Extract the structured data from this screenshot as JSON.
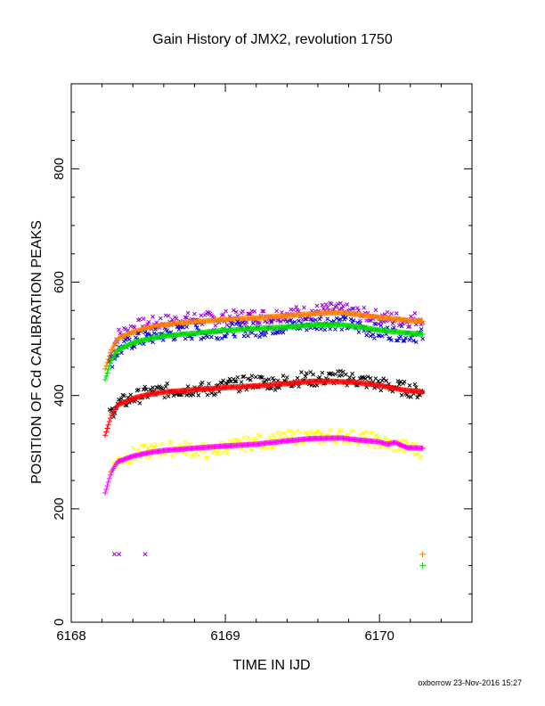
{
  "chart_data": {
    "type": "scatter",
    "title": "Gain History of JMX2, revolution 1750",
    "xlabel": "TIME IN IJD",
    "ylabel": "POSITION OF Cd CALIBRATION PEAKS",
    "xlim": [
      6168.0,
      6170.6
    ],
    "ylim": [
      0,
      950
    ],
    "xticks": [
      "6168",
      "6169",
      "6170"
    ],
    "yticks": [
      "0",
      "200",
      "400",
      "600",
      "800"
    ],
    "grid": false,
    "series": [
      {
        "color": "#9900cc",
        "marker": "x",
        "role": "scatter",
        "points": [
          [
            6168.25,
            465
          ],
          [
            6168.3,
            505
          ],
          [
            6168.4,
            520
          ],
          [
            6168.5,
            525
          ],
          [
            6168.6,
            530
          ],
          [
            6168.7,
            532
          ],
          [
            6168.8,
            535
          ],
          [
            6168.9,
            535
          ],
          [
            6169.0,
            537
          ],
          [
            6169.1,
            538
          ],
          [
            6169.2,
            540
          ],
          [
            6169.3,
            540
          ],
          [
            6169.4,
            545
          ],
          [
            6169.5,
            545
          ],
          [
            6169.6,
            548
          ],
          [
            6169.7,
            552
          ],
          [
            6169.8,
            548
          ],
          [
            6169.9,
            542
          ],
          [
            6170.0,
            538
          ],
          [
            6170.1,
            535
          ],
          [
            6170.2,
            533
          ],
          [
            6170.28,
            538
          ]
        ]
      },
      {
        "color": "#ff8000",
        "marker": "line",
        "role": "fit",
        "points": [
          [
            6168.22,
            447
          ],
          [
            6168.26,
            480
          ],
          [
            6168.3,
            500
          ],
          [
            6168.4,
            512
          ],
          [
            6168.5,
            520
          ],
          [
            6168.6,
            525
          ],
          [
            6168.8,
            530
          ],
          [
            6169.0,
            534
          ],
          [
            6169.2,
            537
          ],
          [
            6169.4,
            541
          ],
          [
            6169.6,
            545
          ],
          [
            6169.75,
            546
          ],
          [
            6169.85,
            543
          ],
          [
            6170.0,
            538
          ],
          [
            6170.1,
            535
          ],
          [
            6170.2,
            532
          ],
          [
            6170.28,
            531
          ]
        ]
      },
      {
        "color": "#0000cc",
        "marker": "x",
        "role": "scatter",
        "points": [
          [
            6168.25,
            455
          ],
          [
            6168.3,
            478
          ],
          [
            6168.4,
            495
          ],
          [
            6168.5,
            502
          ],
          [
            6168.6,
            508
          ],
          [
            6168.7,
            510
          ],
          [
            6168.8,
            512
          ],
          [
            6168.9,
            510
          ],
          [
            6169.0,
            515
          ],
          [
            6169.1,
            518
          ],
          [
            6169.2,
            515
          ],
          [
            6169.3,
            520
          ],
          [
            6169.4,
            522
          ],
          [
            6169.5,
            525
          ],
          [
            6169.6,
            528
          ],
          [
            6169.7,
            530
          ],
          [
            6169.8,
            525
          ],
          [
            6169.9,
            518
          ],
          [
            6170.0,
            512
          ],
          [
            6170.1,
            510
          ],
          [
            6170.2,
            508
          ],
          [
            6170.28,
            505
          ]
        ]
      },
      {
        "color": "#00dd00",
        "marker": "line",
        "role": "fit",
        "points": [
          [
            6168.22,
            428
          ],
          [
            6168.26,
            462
          ],
          [
            6168.3,
            480
          ],
          [
            6168.4,
            493
          ],
          [
            6168.5,
            500
          ],
          [
            6168.6,
            505
          ],
          [
            6168.8,
            510
          ],
          [
            6169.0,
            515
          ],
          [
            6169.2,
            518
          ],
          [
            6169.4,
            521
          ],
          [
            6169.6,
            525
          ],
          [
            6169.75,
            525
          ],
          [
            6169.9,
            520
          ],
          [
            6170.0,
            515
          ],
          [
            6170.15,
            511
          ],
          [
            6170.28,
            508
          ]
        ]
      },
      {
        "color": "#000000",
        "marker": "x",
        "role": "scatter",
        "points": [
          [
            6168.25,
            365
          ],
          [
            6168.3,
            385
          ],
          [
            6168.4,
            395
          ],
          [
            6168.5,
            405
          ],
          [
            6168.6,
            408
          ],
          [
            6168.7,
            410
          ],
          [
            6168.8,
            412
          ],
          [
            6168.9,
            410
          ],
          [
            6169.0,
            418
          ],
          [
            6169.1,
            420
          ],
          [
            6169.2,
            425
          ],
          [
            6169.3,
            422
          ],
          [
            6169.4,
            425
          ],
          [
            6169.5,
            430
          ],
          [
            6169.6,
            428
          ],
          [
            6169.7,
            432
          ],
          [
            6169.8,
            430
          ],
          [
            6169.9,
            425
          ],
          [
            6170.0,
            420
          ],
          [
            6170.1,
            415
          ],
          [
            6170.2,
            410
          ],
          [
            6170.28,
            405
          ]
        ]
      },
      {
        "color": "#ff0000",
        "marker": "line",
        "role": "fit",
        "points": [
          [
            6168.22,
            330
          ],
          [
            6168.26,
            365
          ],
          [
            6168.3,
            383
          ],
          [
            6168.4,
            395
          ],
          [
            6168.5,
            402
          ],
          [
            6168.6,
            406
          ],
          [
            6168.8,
            410
          ],
          [
            6169.0,
            414
          ],
          [
            6169.2,
            417
          ],
          [
            6169.4,
            421
          ],
          [
            6169.55,
            425
          ],
          [
            6169.7,
            425
          ],
          [
            6169.85,
            423
          ],
          [
            6170.0,
            418
          ],
          [
            6170.15,
            410
          ],
          [
            6170.28,
            406
          ]
        ]
      },
      {
        "color": "#ffff00",
        "marker": "x",
        "role": "scatter",
        "points": [
          [
            6168.25,
            265
          ],
          [
            6168.3,
            285
          ],
          [
            6168.4,
            295
          ],
          [
            6168.5,
            302
          ],
          [
            6168.6,
            305
          ],
          [
            6168.7,
            308
          ],
          [
            6168.8,
            305
          ],
          [
            6168.9,
            300
          ],
          [
            6169.0,
            310
          ],
          [
            6169.1,
            312
          ],
          [
            6169.2,
            318
          ],
          [
            6169.3,
            320
          ],
          [
            6169.4,
            325
          ],
          [
            6169.5,
            328
          ],
          [
            6169.6,
            325
          ],
          [
            6169.7,
            330
          ],
          [
            6169.8,
            328
          ],
          [
            6169.9,
            325
          ],
          [
            6170.0,
            318
          ],
          [
            6170.1,
            312
          ],
          [
            6170.2,
            308
          ],
          [
            6170.28,
            300
          ]
        ]
      },
      {
        "color": "#ff00ff",
        "marker": "line",
        "role": "fit",
        "points": [
          [
            6168.22,
            228
          ],
          [
            6168.26,
            265
          ],
          [
            6168.3,
            283
          ],
          [
            6168.4,
            293
          ],
          [
            6168.5,
            299
          ],
          [
            6168.6,
            303
          ],
          [
            6168.8,
            307
          ],
          [
            6169.0,
            311
          ],
          [
            6169.2,
            314
          ],
          [
            6169.4,
            320
          ],
          [
            6169.55,
            324
          ],
          [
            6169.75,
            325
          ],
          [
            6169.85,
            322
          ],
          [
            6170.0,
            318
          ],
          [
            6170.05,
            314
          ],
          [
            6170.1,
            317
          ],
          [
            6170.18,
            308
          ],
          [
            6170.28,
            307
          ]
        ]
      },
      {
        "color": "#9900cc",
        "marker": "x",
        "role": "isolated",
        "points": [
          [
            6168.28,
            120
          ],
          [
            6168.31,
            120
          ],
          [
            6168.48,
            120
          ]
        ]
      },
      {
        "color": "#ff8000",
        "marker": "+",
        "role": "isolated",
        "points": [
          [
            6170.28,
            120
          ]
        ]
      },
      {
        "color": "#00dd00",
        "marker": "+",
        "role": "isolated",
        "points": [
          [
            6170.28,
            100
          ]
        ]
      }
    ]
  },
  "footer": "oxborrow 23-Nov-2016 15:27"
}
